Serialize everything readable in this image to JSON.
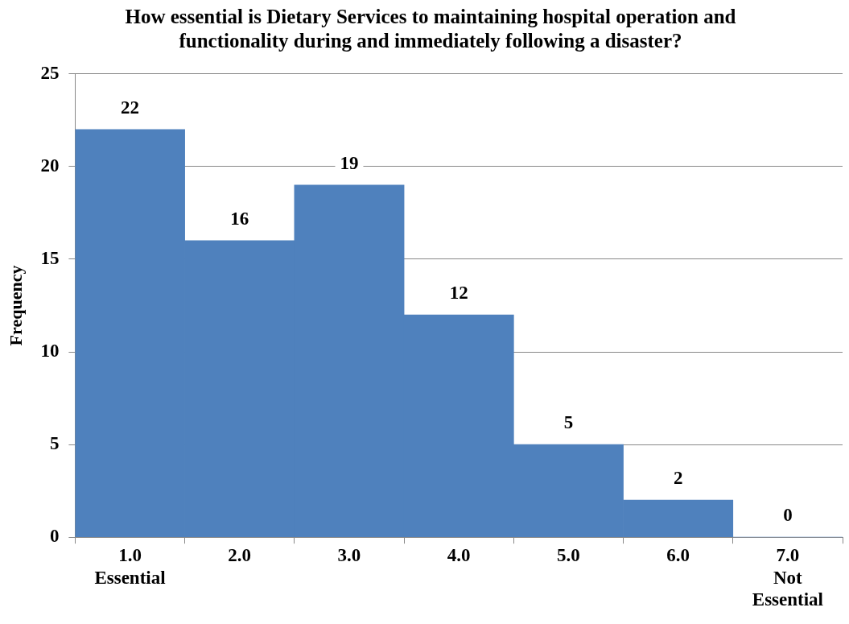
{
  "chart_data": {
    "type": "bar",
    "title": "How essential is Dietary Services to maintaining hospital operation and functionality during and immediately following a disaster?",
    "ylabel": "Frequency",
    "categories": [
      "1.0\nEssential",
      "2.0",
      "3.0",
      "4.0",
      "5.0",
      "6.0",
      "7.0\nNot\nEssential"
    ],
    "values": [
      22,
      16,
      19,
      12,
      5,
      2,
      0
    ],
    "color": "#4f81bd",
    "ylim": [
      0,
      25
    ],
    "yticks": [
      0,
      5,
      10,
      15,
      20,
      25
    ],
    "grid": "y",
    "data_labels": true,
    "legend": false
  }
}
